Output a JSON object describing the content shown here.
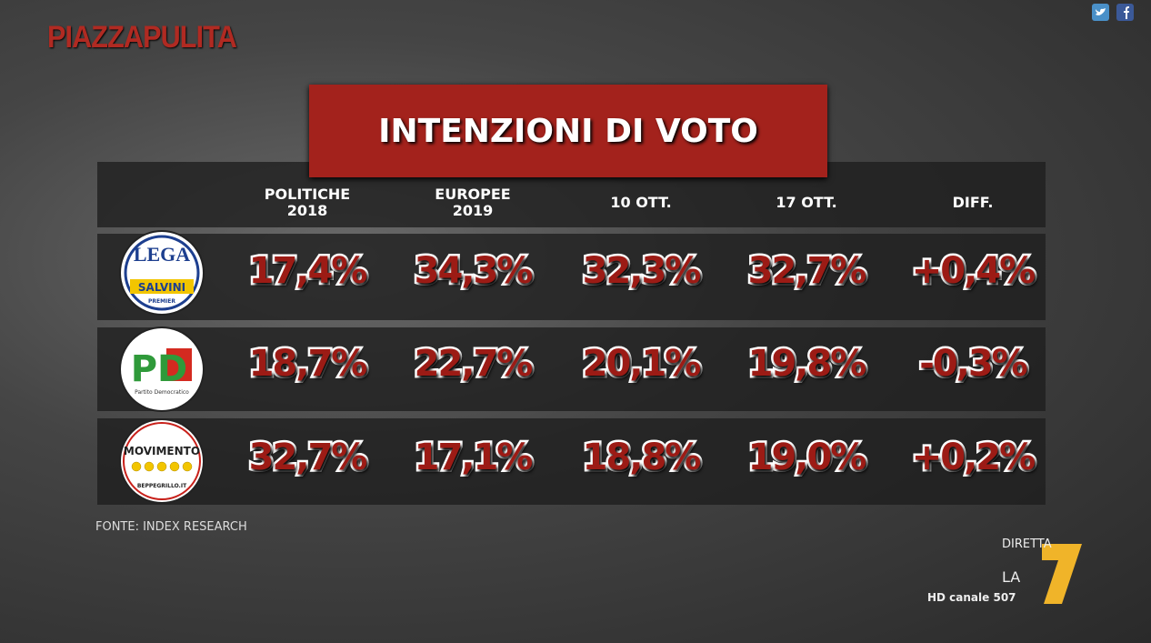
{
  "brand": "PIAZZAPULITA",
  "title": "INTENZIONI DI VOTO",
  "table": {
    "headers": [
      [
        "POLITICHE",
        "2018"
      ],
      [
        "EUROPEE",
        "2019"
      ],
      [
        "10 OTT."
      ],
      [
        "17 OTT."
      ],
      [
        "DIFF."
      ]
    ],
    "rows": [
      {
        "logo": [
          "LEGA",
          "SALVINI",
          "PREMIER"
        ],
        "values": [
          "17,4%",
          "34,3%",
          "32,3%",
          "32,7%",
          "+0,4%"
        ]
      },
      {
        "logo": [
          "PD",
          "Partito Democratico"
        ],
        "values": [
          "18,7%",
          "22,7%",
          "20,1%",
          "19,8%",
          "-0,3%"
        ]
      },
      {
        "logo": [
          "MOVIMENTO",
          "BEPPEGRILLO.IT"
        ],
        "values": [
          "32,7%",
          "17,1%",
          "18,8%",
          "19,0%",
          "+0,2%"
        ]
      }
    ]
  },
  "source": "FONTE: INDEX RESEARCH",
  "channel": {
    "live": "DIRETTA",
    "name": "LA",
    "number": "7",
    "hd": "HD canale 507"
  }
}
